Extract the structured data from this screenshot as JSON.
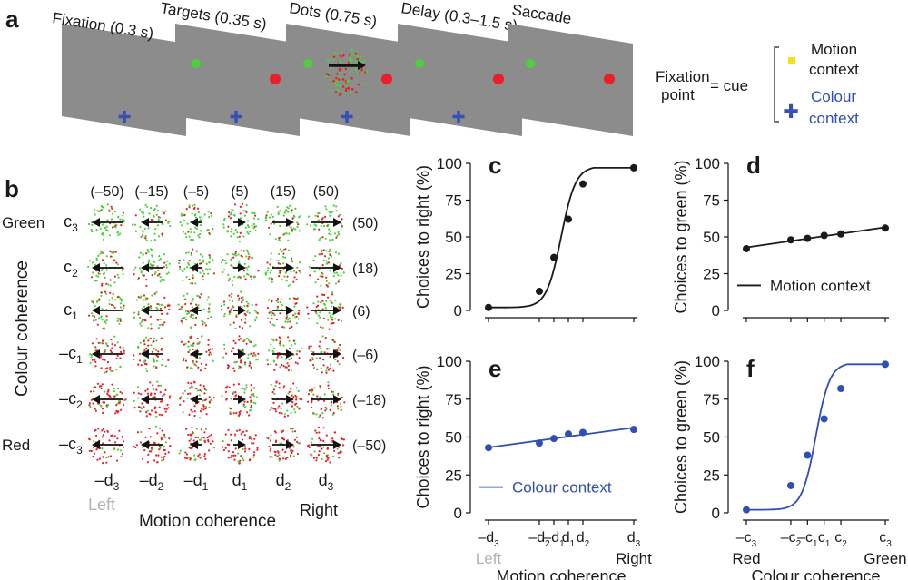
{
  "panels": {
    "a": "a",
    "b": "b",
    "c": "c",
    "d": "d",
    "e": "e",
    "f": "f"
  },
  "panel_a": {
    "epochs": [
      "Fixation (0.3 s)",
      "Targets (0.35 s)",
      "Dots (0.75 s)",
      "Delay (0.3–1.5 s)",
      "Saccade"
    ],
    "legend": {
      "fixation_line1": "Fixation",
      "fixation_line2": "point",
      "equals_cue": "= cue",
      "motion_line1": "Motion",
      "motion_line2": "context",
      "colour_line1": "Colour",
      "colour_line2": "context"
    },
    "colors": {
      "screen": "#8c8c8c",
      "green_target": "#4bd23b",
      "red_target": "#e8202a",
      "fix_blue": "#3550b8",
      "fix_yellow": "#f2e21a"
    }
  },
  "panel_b": {
    "motion_values": [
      "(–50)",
      "(–15)",
      "(–5)",
      "(5)",
      "(15)",
      "(50)"
    ],
    "colour_values": [
      "(50)",
      "(18)",
      "(6)",
      "(–6)",
      "(–18)",
      "(–50)"
    ],
    "row_side_labels": [
      "Green",
      "",
      "",
      "",
      "",
      "Red"
    ],
    "row_labels": [
      {
        "sign": "",
        "base": "c",
        "sub": "3"
      },
      {
        "sign": "",
        "base": "c",
        "sub": "2"
      },
      {
        "sign": "",
        "base": "c",
        "sub": "1"
      },
      {
        "sign": "–",
        "base": "c",
        "sub": "1"
      },
      {
        "sign": "–",
        "base": "c",
        "sub": "2"
      },
      {
        "sign": "–",
        "base": "c",
        "sub": "3"
      }
    ],
    "col_labels": [
      {
        "sign": "–",
        "base": "d",
        "sub": "3"
      },
      {
        "sign": "–",
        "base": "d",
        "sub": "2"
      },
      {
        "sign": "–",
        "base": "d",
        "sub": "1"
      },
      {
        "sign": "",
        "base": "d",
        "sub": "1"
      },
      {
        "sign": "",
        "base": "d",
        "sub": "2"
      },
      {
        "sign": "",
        "base": "d",
        "sub": "3"
      }
    ],
    "left_label": "Left",
    "right_label": "Right",
    "xlabel": "Motion coherence",
    "ylabel": "Colour coherence"
  },
  "chart_data": [
    {
      "id": "c",
      "type": "line",
      "ylabel": "Choices to right (%)",
      "xlabel": "",
      "ylim": [
        0,
        100
      ],
      "yticks": [
        0,
        25,
        50,
        75,
        100
      ],
      "series": [
        {
          "name": "Motion context",
          "color": "#1a1a1a",
          "x": [
            -0.5,
            -0.15,
            -0.05,
            0.05,
            0.15,
            0.5
          ],
          "y": [
            2,
            13,
            36,
            62,
            86,
            97
          ]
        }
      ]
    },
    {
      "id": "d",
      "type": "line",
      "ylabel": "Choices to green (%)",
      "xlabel": "",
      "legend": "Motion context",
      "ylim": [
        0,
        100
      ],
      "yticks": [
        0,
        25,
        50,
        75,
        100
      ],
      "series": [
        {
          "name": "Motion context",
          "color": "#1a1a1a",
          "x": [
            -0.5,
            -0.18,
            -0.06,
            0.06,
            0.18,
            0.5
          ],
          "y": [
            42,
            48,
            49,
            51,
            52,
            56
          ]
        }
      ]
    },
    {
      "id": "e",
      "type": "line",
      "ylabel": "Choices to right (%)",
      "xlabel": "Motion coherence",
      "legend": "Colour context",
      "ylim": [
        0,
        100
      ],
      "yticks": [
        0,
        25,
        50,
        75,
        100
      ],
      "xtick_labels": [
        {
          "sign": "–",
          "base": "d",
          "sub": "3"
        },
        {
          "sign": "–",
          "base": "d",
          "sub": "2"
        },
        {
          "sign": "–",
          "base": "d",
          "sub": "1"
        },
        {
          "sign": "",
          "base": "d",
          "sub": "1"
        },
        {
          "sign": "",
          "base": "d",
          "sub": "2"
        },
        {
          "sign": "",
          "base": "d",
          "sub": "3"
        }
      ],
      "x_end_labels": [
        "Left",
        "Right"
      ],
      "series": [
        {
          "name": "Colour context",
          "color": "#2f4fb5",
          "x": [
            -0.5,
            -0.15,
            -0.05,
            0.05,
            0.15,
            0.5
          ],
          "y": [
            43,
            46,
            49,
            52,
            53,
            55
          ]
        }
      ]
    },
    {
      "id": "f",
      "type": "line",
      "ylabel": "Choices to green (%)",
      "xlabel": "Colour coherence",
      "ylim": [
        0,
        100
      ],
      "yticks": [
        0,
        25,
        50,
        75,
        100
      ],
      "xtick_labels": [
        {
          "sign": "–",
          "base": "c",
          "sub": "3"
        },
        {
          "sign": "–",
          "base": "c",
          "sub": "2"
        },
        {
          "sign": "–",
          "base": "c",
          "sub": "1"
        },
        {
          "sign": "",
          "base": "c",
          "sub": "1"
        },
        {
          "sign": "",
          "base": "c",
          "sub": "2"
        },
        {
          "sign": "",
          "base": "c",
          "sub": "3"
        }
      ],
      "x_end_labels": [
        "Red",
        "Green"
      ],
      "series": [
        {
          "name": "Colour context",
          "color": "#2f4fb5",
          "x": [
            -0.5,
            -0.18,
            -0.06,
            0.06,
            0.18,
            0.5
          ],
          "y": [
            2,
            18,
            38,
            62,
            82,
            98
          ]
        }
      ]
    }
  ]
}
